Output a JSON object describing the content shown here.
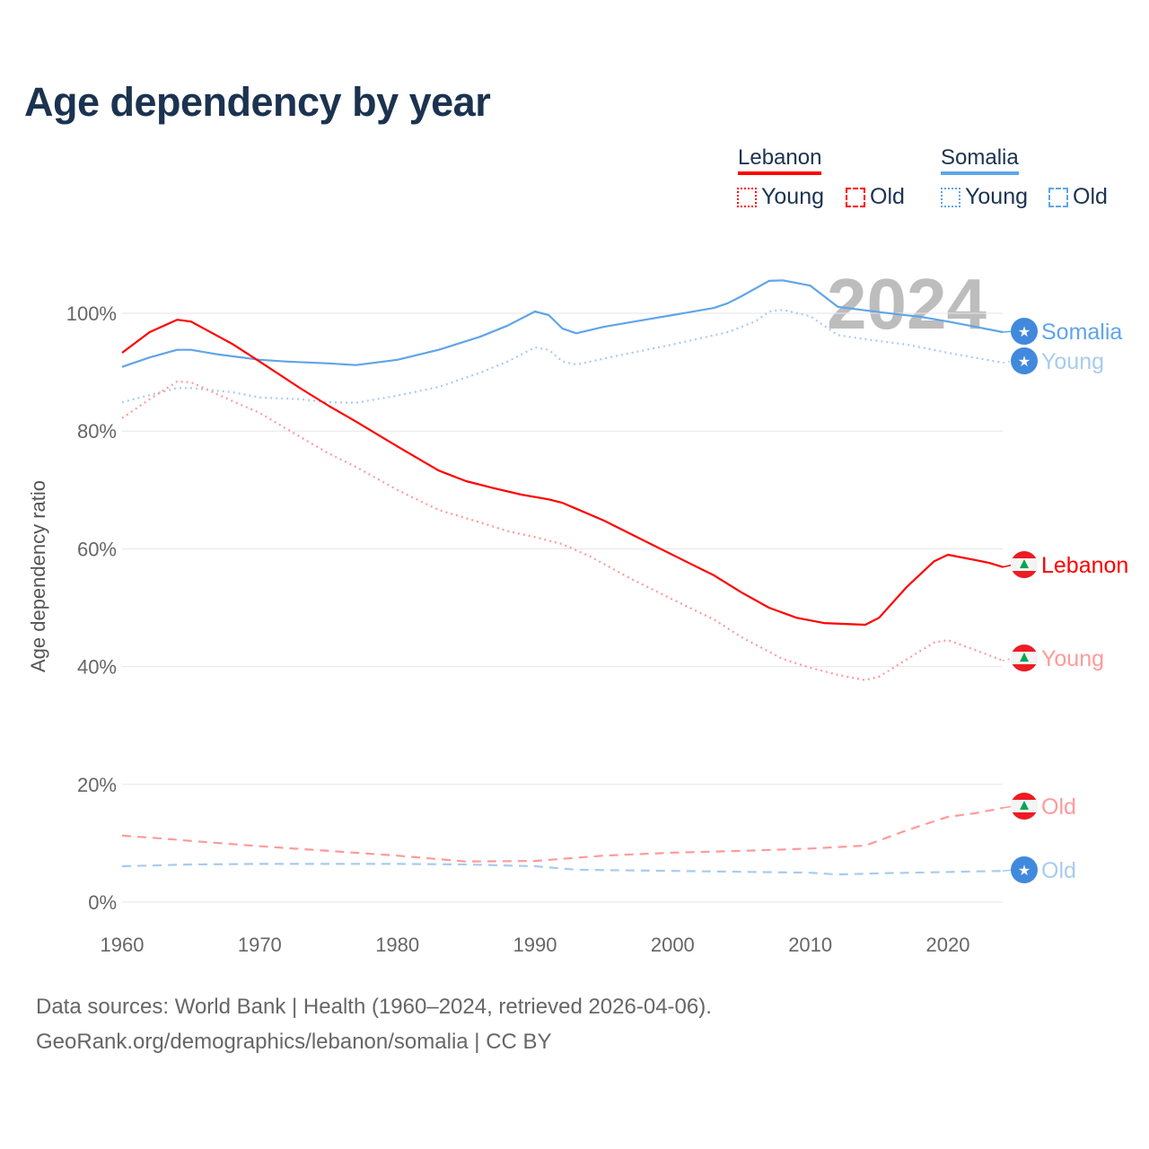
{
  "title": "Age dependency by year",
  "year_watermark": "2024",
  "legend": {
    "groups": [
      {
        "country": "Lebanon",
        "color": "#ff0000",
        "young": "Young",
        "old": "Old",
        "light": "#ff9a9a"
      },
      {
        "country": "Somalia",
        "color": "#5fa5e8",
        "young": "Young",
        "old": "Old",
        "light": "#a8cbf0"
      }
    ]
  },
  "footer": {
    "line1": "Data sources: World Bank | Health (1960–2024, retrieved 2026-04-06).",
    "line2": "GeoRank.org/demographics/lebanon/somalia | CC BY"
  },
  "chart_data": {
    "type": "line",
    "title": "Age dependency by year",
    "xlabel": "",
    "ylabel": "Age dependency ratio",
    "xlim": [
      1960,
      2024
    ],
    "ylim": [
      0,
      110
    ],
    "xticks": [
      "1960",
      "1970",
      "1980",
      "1990",
      "2000",
      "2010",
      "2020"
    ],
    "yticks": [
      "0%",
      "20%",
      "40%",
      "60%",
      "80%",
      "100%"
    ],
    "grid": true,
    "series": [
      {
        "name": "Somalia",
        "end_label": "Somalia",
        "style": "solid",
        "color": "#5fa5e8",
        "labelColor": "#5fa5e8",
        "flag": "somalia",
        "x": [
          1960,
          1962,
          1964,
          1965,
          1967,
          1970,
          1972,
          1975,
          1977,
          1980,
          1983,
          1986,
          1988,
          1990,
          1991,
          1992,
          1993,
          1995,
          1998,
          2000,
          2003,
          2004,
          2005,
          2007,
          2008,
          2010,
          2012,
          2015,
          2018,
          2020,
          2022,
          2024
        ],
        "y": [
          90.9,
          92.5,
          93.8,
          93.8,
          93.0,
          92.1,
          91.8,
          91.5,
          91.2,
          92.1,
          93.8,
          96.0,
          97.9,
          100.3,
          99.7,
          97.4,
          96.6,
          97.7,
          98.9,
          99.7,
          100.9,
          101.7,
          102.9,
          105.5,
          105.6,
          104.7,
          101.1,
          100.2,
          99.4,
          98.6,
          97.7,
          96.8
        ]
      },
      {
        "name": "Somalia Young",
        "end_label": "Young",
        "style": "dotted",
        "color": "#a8cbf0",
        "labelColor": "#a8cbf0",
        "flag": "somalia",
        "x": [
          1960,
          1962,
          1964,
          1965,
          1968,
          1970,
          1973,
          1975,
          1977,
          1980,
          1983,
          1986,
          1988,
          1990,
          1991,
          1992,
          1993,
          1996,
          2000,
          2004,
          2006,
          2007,
          2008,
          2010,
          2012,
          2014,
          2017,
          2020,
          2024
        ],
        "y": [
          84.9,
          86.1,
          87.3,
          87.3,
          86.6,
          85.7,
          85.4,
          84.9,
          84.8,
          86.0,
          87.5,
          89.9,
          91.8,
          94.2,
          93.8,
          91.8,
          91.3,
          92.8,
          94.7,
          96.8,
          98.6,
          100.3,
          100.6,
          99.5,
          96.3,
          95.6,
          94.7,
          93.3,
          91.6
        ]
      },
      {
        "name": "Lebanon",
        "end_label": "Lebanon",
        "style": "solid",
        "color": "#ff0000",
        "labelColor": "#ff0000",
        "flag": "lebanon",
        "x": [
          1960,
          1962,
          1964,
          1965,
          1968,
          1970,
          1973,
          1975,
          1977,
          1980,
          1983,
          1985,
          1987,
          1989,
          1991,
          1992,
          1995,
          1998,
          2001,
          2003,
          2005,
          2007,
          2009,
          2011,
          2014,
          2015,
          2017,
          2019,
          2020,
          2022,
          2023,
          2024
        ],
        "y": [
          93.3,
          96.8,
          98.9,
          98.6,
          94.8,
          91.8,
          87.2,
          84.3,
          81.6,
          77.4,
          73.3,
          71.5,
          70.3,
          69.2,
          68.4,
          67.8,
          64.8,
          61.3,
          57.8,
          55.5,
          52.6,
          50.0,
          48.3,
          47.4,
          47.1,
          48.3,
          53.5,
          57.9,
          59.0,
          58.1,
          57.6,
          56.9
        ]
      },
      {
        "name": "Lebanon Young",
        "end_label": "Young",
        "style": "dotted",
        "color": "#ff9a9a",
        "labelColor": "#ff9a9a",
        "flag": "lebanon",
        "x": [
          1960,
          1962,
          1964,
          1965,
          1968,
          1970,
          1972,
          1975,
          1977,
          1980,
          1983,
          1986,
          1988,
          1990,
          1992,
          1994,
          1997,
          2000,
          2003,
          2005,
          2008,
          2010,
          2012,
          2014,
          2015,
          2017,
          2019,
          2020,
          2022,
          2024
        ],
        "y": [
          82.2,
          85.4,
          88.4,
          88.3,
          85.1,
          83.1,
          80.3,
          76.2,
          73.9,
          70.0,
          66.6,
          64.5,
          63.0,
          62.0,
          60.8,
          58.7,
          54.9,
          51.4,
          48.0,
          45.0,
          41.3,
          39.8,
          38.6,
          37.7,
          38.3,
          41.2,
          44.1,
          44.5,
          42.8,
          41.0
        ]
      },
      {
        "name": "Lebanon Old",
        "end_label": "Old",
        "style": "dashed",
        "color": "#ff9a9a",
        "labelColor": "#ff9a9a",
        "flag": "lebanon",
        "x": [
          1960,
          1963,
          1965,
          1970,
          1975,
          1980,
          1985,
          1990,
          1995,
          2000,
          2005,
          2010,
          2014,
          2017,
          2020,
          2022,
          2024
        ],
        "y": [
          11.3,
          10.8,
          10.4,
          9.5,
          8.7,
          7.9,
          6.9,
          7.0,
          7.9,
          8.4,
          8.7,
          9.1,
          9.6,
          12.2,
          14.5,
          15.1,
          16.0
        ]
      },
      {
        "name": "Somalia Old",
        "end_label": "Old",
        "style": "dashed",
        "color": "#a8cbf0",
        "labelColor": "#a8cbf0",
        "flag": "somalia",
        "x": [
          1960,
          1965,
          1970,
          1980,
          1985,
          1990,
          1993,
          2000,
          2010,
          2012,
          2015,
          2024
        ],
        "y": [
          6.1,
          6.4,
          6.5,
          6.5,
          6.4,
          6.1,
          5.5,
          5.3,
          5.0,
          4.7,
          4.9,
          5.3
        ]
      }
    ]
  }
}
